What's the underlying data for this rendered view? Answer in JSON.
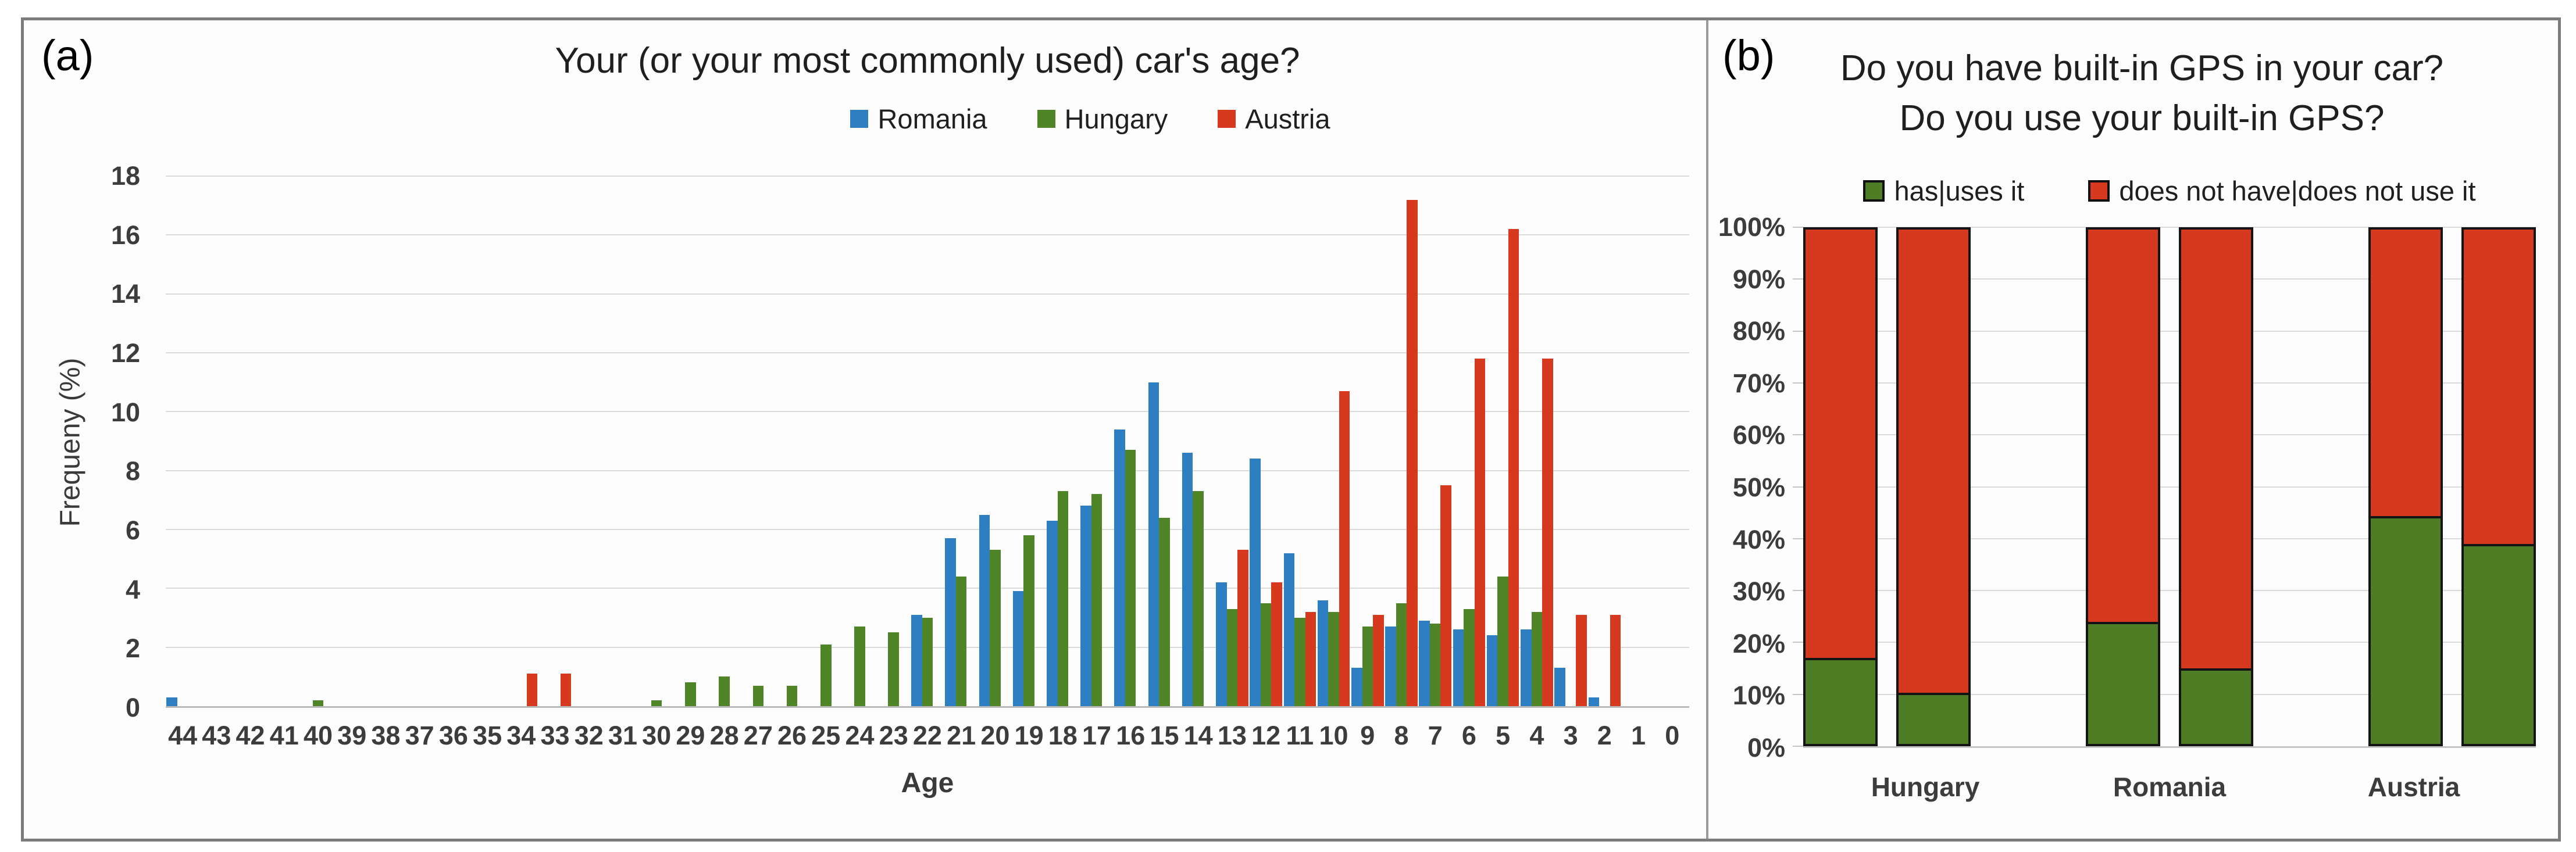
{
  "panel_a": {
    "label": "(a)",
    "title": "Your (or your most commonly used) car's age?",
    "ylabel": "Frequeny (%)",
    "xlabel": "Age"
  },
  "panel_b": {
    "label": "(b)",
    "title_line1": "Do you have built-in GPS in your car?",
    "title_line2": "Do you use your built-in GPS?"
  },
  "chart_data": [
    {
      "type": "bar",
      "panel": "a",
      "title": "Your (or your most commonly used) car's age?",
      "xlabel": "Age",
      "ylabel": "Frequeny (%)",
      "ylim": [
        0,
        18
      ],
      "yticks": [
        0,
        2,
        4,
        6,
        8,
        10,
        12,
        14,
        16,
        18
      ],
      "grid": true,
      "legend_position": "top",
      "categories": [
        "44",
        "43",
        "42",
        "41",
        "40",
        "39",
        "38",
        "37",
        "36",
        "35",
        "34",
        "33",
        "32",
        "31",
        "30",
        "29",
        "28",
        "27",
        "26",
        "25",
        "24",
        "23",
        "22",
        "21",
        "20",
        "19",
        "18",
        "17",
        "16",
        "15",
        "14",
        "13",
        "12",
        "11",
        "10",
        "9",
        "8",
        "7",
        "6",
        "5",
        "4",
        "3",
        "2",
        "1",
        "0"
      ],
      "series": [
        {
          "name": "Romania",
          "color": "#2E7FC2",
          "values": [
            0.3,
            0,
            0,
            0,
            0,
            0,
            0,
            0,
            0,
            0,
            0,
            0,
            0,
            0,
            0,
            0,
            0,
            0,
            0,
            0,
            0,
            0,
            3.1,
            5.7,
            6.5,
            3.9,
            6.3,
            6.8,
            9.4,
            11.0,
            8.6,
            4.2,
            8.4,
            5.2,
            3.6,
            1.3,
            2.7,
            2.9,
            2.6,
            2.4,
            2.6,
            1.3,
            0.3,
            0,
            0
          ]
        },
        {
          "name": "Hungary",
          "color": "#4F8527",
          "values": [
            0,
            0,
            0,
            0,
            0.2,
            0,
            0,
            0,
            0,
            0,
            0,
            0,
            0,
            0,
            0.2,
            0.8,
            1.0,
            0.7,
            0.7,
            2.1,
            2.7,
            2.5,
            3.0,
            4.4,
            5.3,
            5.8,
            7.3,
            7.2,
            8.7,
            6.4,
            7.3,
            3.3,
            3.5,
            3.0,
            3.2,
            2.7,
            3.5,
            2.8,
            3.3,
            4.4,
            3.2,
            0,
            0,
            0,
            0
          ]
        },
        {
          "name": "Austria",
          "color": "#D6391E",
          "values": [
            0,
            0,
            0,
            0,
            0,
            0,
            0,
            0,
            0,
            0,
            1.1,
            1.1,
            0,
            0,
            0,
            0,
            0,
            0,
            0,
            0,
            0,
            0,
            0,
            0,
            0,
            0,
            0,
            0,
            0,
            0,
            0,
            5.3,
            4.2,
            3.2,
            10.7,
            3.1,
            17.2,
            7.5,
            11.8,
            16.2,
            11.8,
            3.1,
            3.1,
            0,
            0
          ]
        }
      ]
    },
    {
      "type": "bar-stacked-100",
      "panel": "b",
      "title": "Do you have built-in GPS in your car? Do you use your built-in GPS?",
      "ylim": [
        0,
        100
      ],
      "yticks": [
        "0%",
        "10%",
        "20%",
        "30%",
        "40%",
        "50%",
        "60%",
        "70%",
        "80%",
        "90%",
        "100%"
      ],
      "grid": true,
      "legend_position": "top",
      "categories": [
        "Hungary",
        "Romania",
        "Austria"
      ],
      "bars_per_category": 2,
      "series": [
        {
          "name": "has|uses it",
          "color": "#4E7D26",
          "values": [
            17,
            10.3,
            24,
            15,
            44.3,
            39
          ]
        },
        {
          "name": "does not have|does not use it",
          "color": "#D6391E",
          "values": [
            83,
            89.7,
            76,
            85,
            55.7,
            61
          ]
        }
      ]
    }
  ]
}
